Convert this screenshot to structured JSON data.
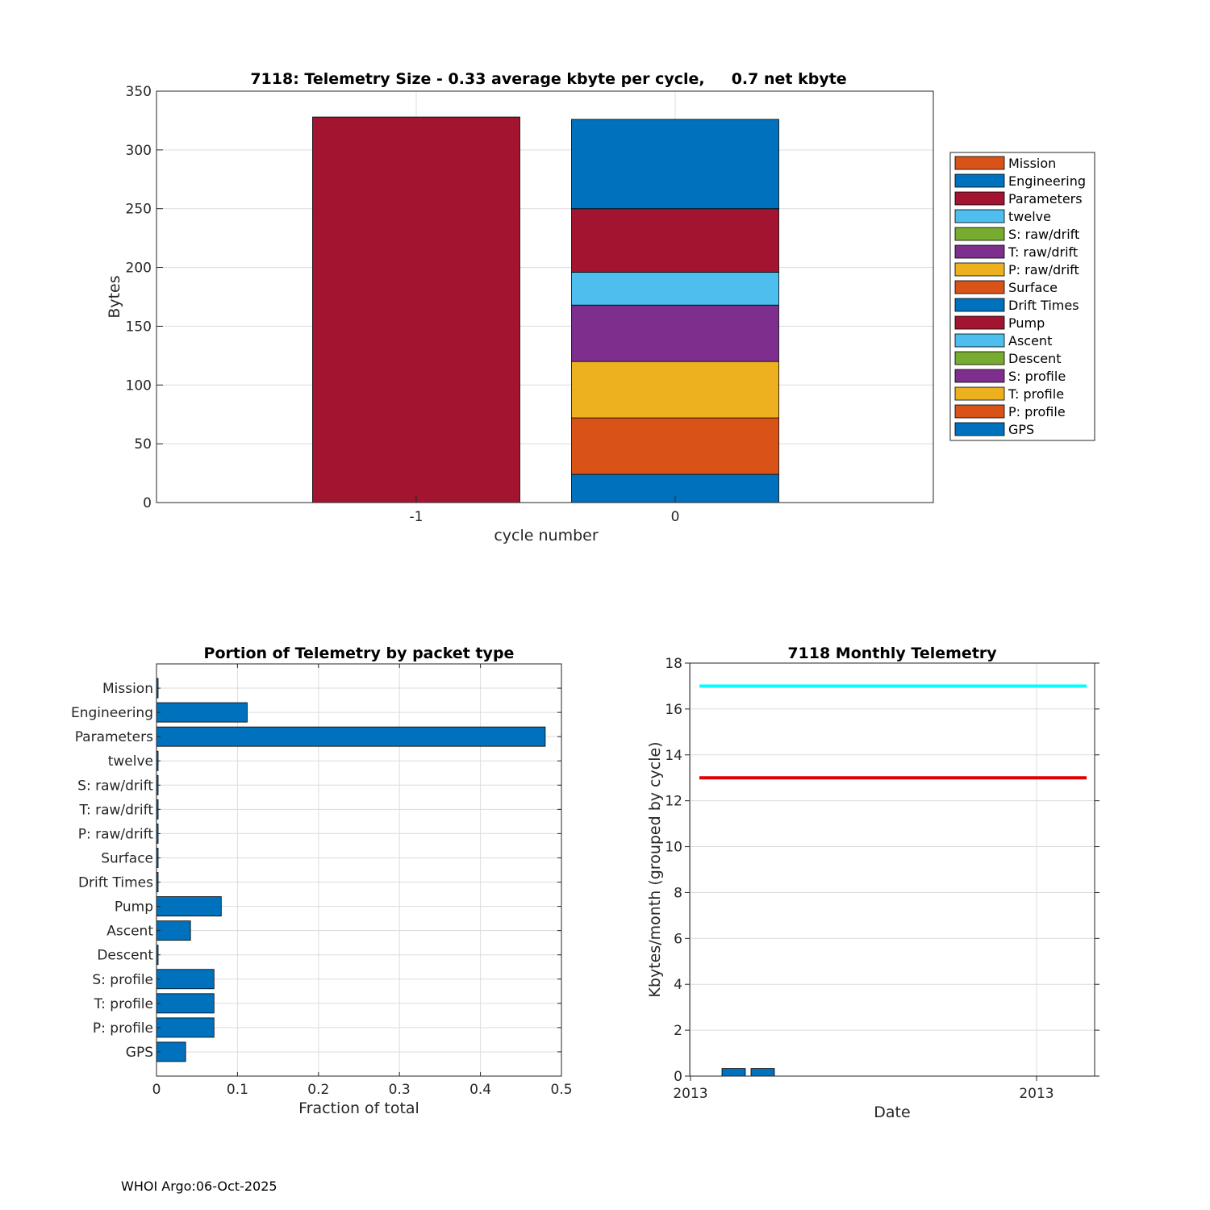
{
  "footer": "WHOI Argo:06-Oct-2025",
  "colors": {
    "orange": "#D95319",
    "blue": "#0072BD",
    "red": "#A2142F",
    "lightblue": "#4DBEEE",
    "green": "#77AC30",
    "purple": "#7E2F8E",
    "yellow": "#EDB120",
    "cyan": "#00FFFF",
    "limit_red": "#E00000"
  },
  "chart_data": [
    {
      "id": "telemetry-size",
      "type": "bar",
      "stacked": true,
      "title": "7118: Telemetry Size - 0.33 average kbyte per cycle,     0.7 net kbyte",
      "xlabel": "cycle number",
      "ylabel": "Bytes",
      "categories": [
        "-1",
        "0"
      ],
      "ylim": [
        0,
        350
      ],
      "yticks": [
        0,
        50,
        100,
        150,
        200,
        250,
        300,
        350
      ],
      "grid": true,
      "legend_position": "right",
      "legend": [
        {
          "name": "Mission",
          "color": "#D95319"
        },
        {
          "name": "Engineering",
          "color": "#0072BD"
        },
        {
          "name": "Parameters",
          "color": "#A2142F"
        },
        {
          "name": "twelve",
          "color": "#4DBEEE"
        },
        {
          "name": "S: raw/drift",
          "color": "#77AC30"
        },
        {
          "name": "T: raw/drift",
          "color": "#7E2F8E"
        },
        {
          "name": "P: raw/drift",
          "color": "#EDB120"
        },
        {
          "name": "Surface",
          "color": "#D95319"
        },
        {
          "name": "Drift Times",
          "color": "#0072BD"
        },
        {
          "name": "Pump",
          "color": "#A2142F"
        },
        {
          "name": "Ascent",
          "color": "#4DBEEE"
        },
        {
          "name": "Descent",
          "color": "#77AC30"
        },
        {
          "name": "S: profile",
          "color": "#7E2F8E"
        },
        {
          "name": "T: profile",
          "color": "#EDB120"
        },
        {
          "name": "P: profile",
          "color": "#D95319"
        },
        {
          "name": "GPS",
          "color": "#0072BD"
        }
      ],
      "stacks": [
        {
          "category": "-1",
          "segments": [
            {
              "name": "Parameters",
              "value": 328,
              "color": "#A2142F"
            }
          ]
        },
        {
          "category": "0",
          "segments": [
            {
              "name": "GPS",
              "value": 24,
              "color": "#0072BD"
            },
            {
              "name": "P: profile",
              "value": 48,
              "color": "#D95319"
            },
            {
              "name": "T: profile",
              "value": 48,
              "color": "#EDB120"
            },
            {
              "name": "S: profile",
              "value": 48,
              "color": "#7E2F8E"
            },
            {
              "name": "Ascent",
              "value": 28,
              "color": "#4DBEEE"
            },
            {
              "name": "Pump",
              "value": 54,
              "color": "#A2142F"
            },
            {
              "name": "Engineering",
              "value": 76,
              "color": "#0072BD"
            }
          ]
        }
      ]
    },
    {
      "id": "portion-by-packet",
      "type": "bar",
      "orientation": "horizontal",
      "title": "Portion of Telemetry by packet type",
      "xlabel": "Fraction of total",
      "xlim": [
        0,
        0.5
      ],
      "xticks": [
        0,
        0.1,
        0.2,
        0.3,
        0.4,
        0.5
      ],
      "xticklabels": [
        "0",
        "0.1",
        "0.2",
        "0.3",
        "0.4",
        "0.5"
      ],
      "grid": true,
      "categories": [
        "Mission",
        "Engineering",
        "Parameters",
        "twelve",
        "S: raw/drift",
        "T: raw/drift",
        "P: raw/drift",
        "Surface",
        "Drift Times",
        "Pump",
        "Ascent",
        "Descent",
        "S: profile",
        "T: profile",
        "P: profile",
        "GPS"
      ],
      "values": [
        0.002,
        0.112,
        0.48,
        0.002,
        0.002,
        0.002,
        0.002,
        0.002,
        0.002,
        0.08,
        0.042,
        0.002,
        0.071,
        0.071,
        0.071,
        0.036
      ],
      "color": "#0072BD"
    },
    {
      "id": "monthly-telemetry",
      "type": "bar",
      "title": "7118 Monthly Telemetry",
      "xlabel": "Date",
      "ylabel": "Kbytes/month (grouped by cycle)",
      "xticklabels": [
        "2013",
        "2013"
      ],
      "ylim": [
        0,
        18
      ],
      "yticks": [
        0,
        2,
        4,
        6,
        8,
        10,
        12,
        14,
        16,
        18
      ],
      "grid": true,
      "bars": [
        0.33,
        0.33
      ],
      "bar_color": "#0072BD",
      "lines": [
        {
          "name": "upper limit",
          "value": 17,
          "color": "#00FFFF"
        },
        {
          "name": "lower limit",
          "value": 13,
          "color": "#E00000"
        }
      ]
    }
  ]
}
